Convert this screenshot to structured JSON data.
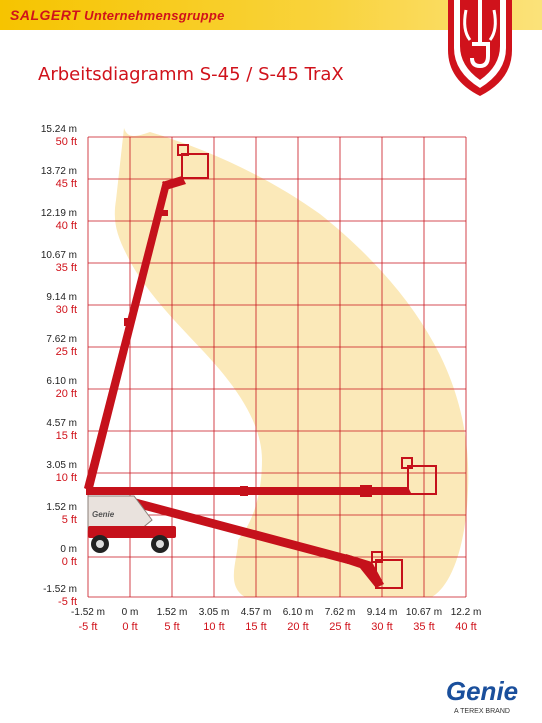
{
  "header": {
    "brand": "SALGERT",
    "subtitle": "Unternehmensgruppe"
  },
  "title": "Arbeitsdiagramm S-45 / S-45 TraX",
  "colors": {
    "accent_red": "#d0121b",
    "header_yellow": "#f6c400",
    "envelope_fill": "#fbe9b9",
    "machine_red": "#c5111b",
    "genie_blue": "#1a4f9c"
  },
  "y_ticks": [
    {
      "m": "15.24 m",
      "ft": "50 ft"
    },
    {
      "m": "13.72 m",
      "ft": "45 ft"
    },
    {
      "m": "12.19 m",
      "ft": "40 ft"
    },
    {
      "m": "10.67 m",
      "ft": "35 ft"
    },
    {
      "m": "9.14 m",
      "ft": "30 ft"
    },
    {
      "m": "7.62 m",
      "ft": "25 ft"
    },
    {
      "m": "6.10 m",
      "ft": "20 ft"
    },
    {
      "m": "4.57 m",
      "ft": "15 ft"
    },
    {
      "m": "3.05 m",
      "ft": "10 ft"
    },
    {
      "m": "1.52 m",
      "ft": "5 ft"
    },
    {
      "m": "0 m",
      "ft": "0 ft"
    },
    {
      "m": "-1.52 m",
      "ft": "-5 ft"
    }
  ],
  "x_ticks": [
    {
      "m": "-1.52 m",
      "ft": "-5 ft"
    },
    {
      "m": "0 m",
      "ft": "0 ft"
    },
    {
      "m": "1.52 m",
      "ft": "5 ft"
    },
    {
      "m": "3.05 m",
      "ft": "10 ft"
    },
    {
      "m": "4.57 m",
      "ft": "15 ft"
    },
    {
      "m": "6.10 m",
      "ft": "20 ft"
    },
    {
      "m": "7.62 m",
      "ft": "25 ft"
    },
    {
      "m": "9.14 m",
      "ft": "30 ft"
    },
    {
      "m": "10.67 m",
      "ft": "35 ft"
    },
    {
      "m": "12.2 m",
      "ft": "40 ft"
    }
  ],
  "machine_label": "Genie",
  "footer": {
    "logo_text": "Genie",
    "tagline": "A TEREX BRAND"
  }
}
